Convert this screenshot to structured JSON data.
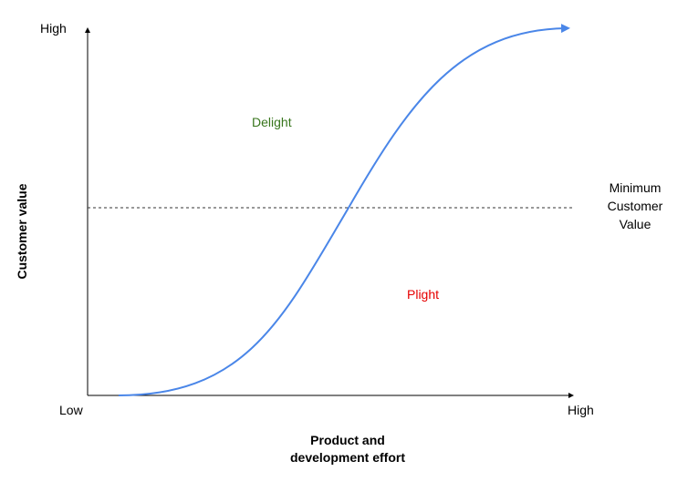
{
  "colors": {
    "curve": "#4a86e8",
    "axis": "#000000",
    "delight": "#38761d",
    "plight": "#e60000",
    "threshold": "#333333"
  },
  "axes": {
    "y_top_label": "High",
    "x_left_label": "Low",
    "x_right_label": "High",
    "x_title_line1": "Product and",
    "x_title_line2": "development effort",
    "y_title": "Customer value"
  },
  "regions": {
    "above": "Delight",
    "below": "Plight"
  },
  "threshold": {
    "line1": "Minimum",
    "line2": "Customer",
    "line3": "Value"
  }
}
